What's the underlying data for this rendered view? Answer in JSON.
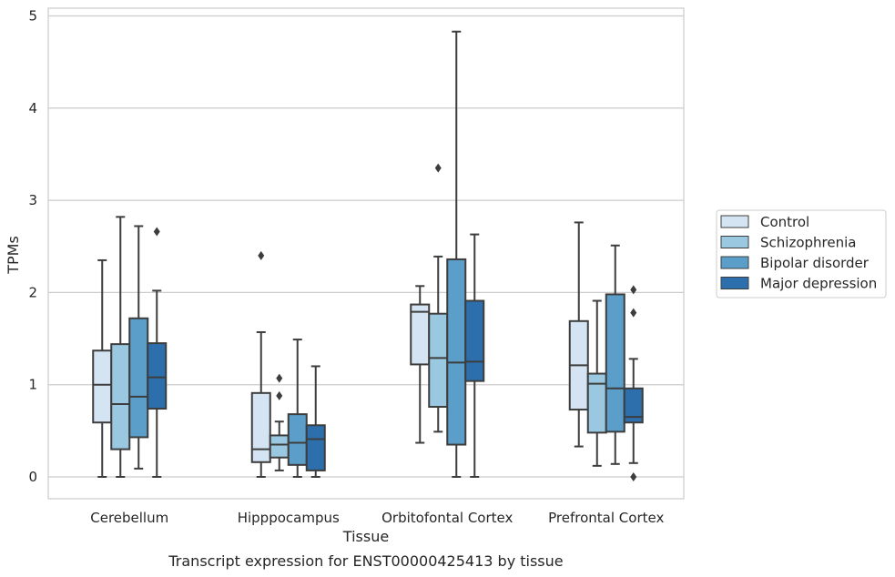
{
  "chart_data": {
    "type": "boxplot",
    "title": "Transcript expression for ENST00000425413 by tissue",
    "xlabel": "Tissue",
    "ylabel": "TPMs",
    "ylim": [
      -0.23,
      5.08
    ],
    "yticks": [
      "0",
      "1",
      "2",
      "3",
      "4",
      "5"
    ],
    "grid": "horizontal",
    "legend_position": "right",
    "categories": [
      "Cerebellum",
      "Hipppocampus",
      "Orbitofontal Cortex",
      "Prefrontal Cortex"
    ],
    "series": [
      {
        "name": "Control",
        "color": "#d4e4f2",
        "boxes": [
          {
            "whislo": 0.0,
            "q1": 0.59,
            "med": 1.0,
            "q3": 1.37,
            "whishi": 2.35,
            "fliers": []
          },
          {
            "whislo": 0.0,
            "q1": 0.16,
            "med": 0.3,
            "q3": 0.91,
            "whishi": 1.57,
            "fliers": [
              2.4
            ]
          },
          {
            "whislo": 0.37,
            "q1": 1.22,
            "med": 1.79,
            "q3": 1.87,
            "whishi": 2.07,
            "fliers": []
          },
          {
            "whislo": 0.33,
            "q1": 0.73,
            "med": 1.21,
            "q3": 1.69,
            "whishi": 2.76,
            "fliers": []
          }
        ]
      },
      {
        "name": "Schizophrenia",
        "color": "#9ac8e0",
        "boxes": [
          {
            "whislo": 0.0,
            "q1": 0.3,
            "med": 0.79,
            "q3": 1.44,
            "whishi": 2.82,
            "fliers": []
          },
          {
            "whislo": 0.07,
            "q1": 0.21,
            "med": 0.35,
            "q3": 0.45,
            "whishi": 0.6,
            "fliers": [
              0.88,
              1.07
            ]
          },
          {
            "whislo": 0.49,
            "q1": 0.76,
            "med": 1.29,
            "q3": 1.77,
            "whishi": 2.39,
            "fliers": [
              3.35
            ]
          },
          {
            "whislo": 0.12,
            "q1": 0.48,
            "med": 1.01,
            "q3": 1.12,
            "whishi": 1.91,
            "fliers": []
          }
        ]
      },
      {
        "name": "Bipolar disorder",
        "color": "#5a9ec9",
        "boxes": [
          {
            "whislo": 0.09,
            "q1": 0.43,
            "med": 0.87,
            "q3": 1.72,
            "whishi": 2.72,
            "fliers": []
          },
          {
            "whislo": 0.0,
            "q1": 0.13,
            "med": 0.37,
            "q3": 0.68,
            "whishi": 1.49,
            "fliers": []
          },
          {
            "whislo": 0.0,
            "q1": 0.35,
            "med": 1.24,
            "q3": 2.36,
            "whishi": 4.83,
            "fliers": []
          },
          {
            "whislo": 0.14,
            "q1": 0.49,
            "med": 0.96,
            "q3": 1.98,
            "whishi": 2.51,
            "fliers": []
          }
        ]
      },
      {
        "name": "Major depression",
        "color": "#2d6fac",
        "boxes": [
          {
            "whislo": 0.0,
            "q1": 0.74,
            "med": 1.08,
            "q3": 1.45,
            "whishi": 2.02,
            "fliers": [
              2.66
            ]
          },
          {
            "whislo": 0.0,
            "q1": 0.07,
            "med": 0.41,
            "q3": 0.56,
            "whishi": 1.2,
            "fliers": []
          },
          {
            "whislo": 0.0,
            "q1": 1.04,
            "med": 1.25,
            "q3": 1.91,
            "whishi": 2.63,
            "fliers": []
          },
          {
            "whislo": 0.15,
            "q1": 0.59,
            "med": 0.65,
            "q3": 0.96,
            "whishi": 1.28,
            "fliers": [
              0.0,
              1.78,
              2.03
            ]
          }
        ]
      }
    ]
  }
}
